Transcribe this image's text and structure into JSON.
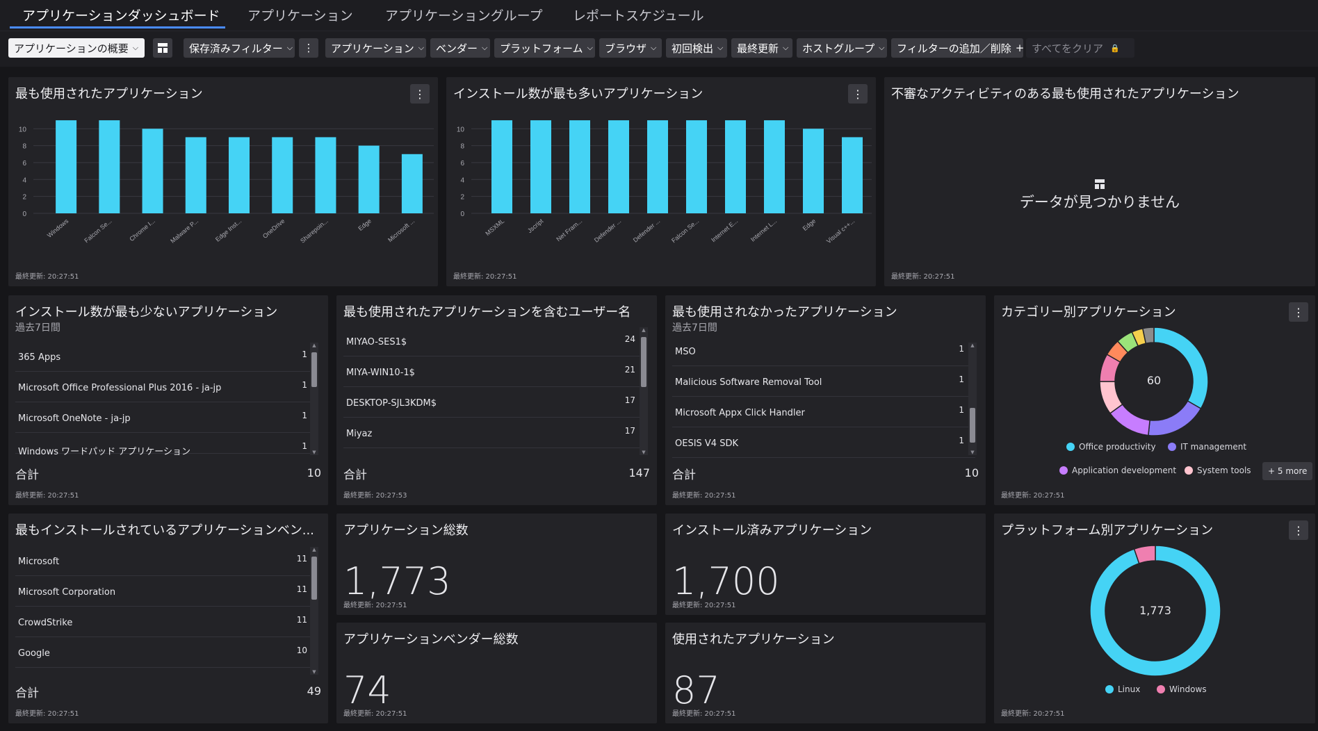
{
  "tabs": [
    {
      "label": "アプリケーションダッシュボード"
    },
    {
      "label": "アプリケーション"
    },
    {
      "label": "アプリケーショングループ"
    },
    {
      "label": "レポートスケジュール"
    }
  ],
  "toolbar": {
    "view_select": "アプリケーションの概要",
    "saved_filters": "保存済みフィルター",
    "filters": [
      "アプリケーション",
      "ベンダー",
      "プラットフォーム",
      "ブラウザ",
      "初回検出",
      "最終更新",
      "ホストグループ"
    ],
    "add_remove": "フィルターの追加／削除",
    "clear_all": "すべてをクリア"
  },
  "colors": {
    "accent": "#45d3f5",
    "tab_underline": "#4a8cff"
  },
  "cards": {
    "most_used": {
      "title": "最も使用されたアプリケーション",
      "footer": "最終更新: 20:27:51",
      "chart_data": {
        "type": "bar",
        "categories": [
          "Windows",
          "Falcon Se...",
          "Chrome I...",
          "Malware P...",
          "Edge Inst...",
          "OneDrive",
          "Sharepoin...",
          "Edge",
          "Microsoft ..."
        ],
        "values": [
          11,
          11,
          10,
          9,
          9,
          9,
          9,
          8,
          7
        ],
        "yticks": [
          0,
          2,
          4,
          6,
          8,
          10
        ],
        "ylim": [
          0,
          11.5
        ],
        "color": "#45d3f5"
      }
    },
    "most_installed": {
      "title": "インストール数が最も多いアプリケーション",
      "footer": "最終更新: 20:27:51",
      "chart_data": {
        "type": "bar",
        "categories": [
          "MSXML",
          "Jscript",
          "Net Fram...",
          "Defender ...",
          "Defender ...",
          "Falcon Se...",
          "Internet E...",
          "Internet L...",
          "Edge",
          "Visual c++..."
        ],
        "values": [
          11,
          11,
          11,
          11,
          11,
          11,
          11,
          11,
          10,
          9
        ],
        "yticks": [
          0,
          2,
          4,
          6,
          8,
          10
        ],
        "ylim": [
          0,
          11.5
        ],
        "color": "#45d3f5"
      }
    },
    "suspicious": {
      "title": "不審なアクティビティのある最も使用されたアプリケーション",
      "no_data": "データが見つかりません",
      "footer": "最終更新: 20:27:51"
    },
    "least_installed": {
      "title": "インストール数が最も少ないアプリケーション",
      "subtitle": "過去7日間",
      "rows": [
        {
          "name": "365 Apps",
          "count": "1"
        },
        {
          "name": "Microsoft Office Professional Plus 2016 - ja-jp",
          "count": "1"
        },
        {
          "name": "Microsoft OneNote - ja-jp",
          "count": "1"
        },
        {
          "name": "Windows ワードパッド アプリケーション",
          "count": "1"
        }
      ],
      "total_label": "合計",
      "total_value": "10",
      "footer": "最終更新: 20:27:51"
    },
    "usernames": {
      "title": "最も使用されたアプリケーションを含むユーザー名",
      "rows": [
        {
          "name": "MIYAO-SES1$",
          "count": "24"
        },
        {
          "name": "MIYA-WIN10-1$",
          "count": "21"
        },
        {
          "name": "DESKTOP-SJL3KDM$",
          "count": "17"
        },
        {
          "name": "Miyaz",
          "count": "17"
        }
      ],
      "total_label": "合計",
      "total_value": "147",
      "footer": "最終更新: 20:27:53"
    },
    "least_used": {
      "title": "最も使用されなかったアプリケーション",
      "subtitle": "過去7日間",
      "rows": [
        {
          "name": "MSO",
          "count": "1"
        },
        {
          "name": "Malicious Software Removal Tool",
          "count": "1"
        },
        {
          "name": "Microsoft Appx Click Handler",
          "count": "1"
        },
        {
          "name": "OESIS V4 SDK",
          "count": "1"
        }
      ],
      "total_label": "合計",
      "total_value": "10",
      "footer": "最終更新: 20:27:51"
    },
    "by_category": {
      "title": "カテゴリー別アプリケーション",
      "center": "60",
      "legend": [
        {
          "name": "Office productivity",
          "color": "#45d3f5"
        },
        {
          "name": "IT management",
          "color": "#8b7cf7"
        },
        {
          "name": "Application development",
          "color": "#c77dff"
        },
        {
          "name": "System tools",
          "color": "#ffc4cf"
        }
      ],
      "more": "+ 5 more",
      "chart_data": {
        "type": "pie",
        "values": [
          20,
          11,
          8,
          6,
          5,
          3,
          3,
          2,
          2
        ],
        "colors": [
          "#45d3f5",
          "#8b7cf7",
          "#c77dff",
          "#ffc4cf",
          "#ef7fb0",
          "#ff8a5c",
          "#9be37a",
          "#f5cf4d",
          "#8c8c8c"
        ]
      },
      "footer": "最終更新: 20:27:51"
    },
    "top_vendors": {
      "title": "最もインストールされているアプリケーションベン...",
      "rows": [
        {
          "name": "Microsoft",
          "count": "11"
        },
        {
          "name": "Microsoft Corporation",
          "count": "11"
        },
        {
          "name": "CrowdStrike",
          "count": "11"
        },
        {
          "name": "Google",
          "count": "10"
        }
      ],
      "total_label": "合計",
      "total_value": "49",
      "footer": "最終更新: 20:27:51"
    },
    "total_apps": {
      "title": "アプリケーション総数",
      "value": "1,773",
      "footer": "最終更新: 20:27:51"
    },
    "installed_apps": {
      "title": "インストール済みアプリケーション",
      "value": "1,700",
      "footer": "最終更新: 20:27:51"
    },
    "total_vendors": {
      "title": "アプリケーションベンダー総数",
      "value": "74",
      "footer": "最終更新: 20:27:51"
    },
    "used_apps": {
      "title": "使用されたアプリケーション",
      "value": "87",
      "footer": "最終更新: 20:27:51"
    },
    "by_platform": {
      "title": "プラットフォーム別アプリケーション",
      "center": "1,773",
      "legend": [
        {
          "name": "Linux",
          "color": "#45d3f5"
        },
        {
          "name": "Windows",
          "color": "#ef7fb0"
        }
      ],
      "chart_data": {
        "type": "pie",
        "values": [
          1680,
          93
        ],
        "colors": [
          "#45d3f5",
          "#ef7fb0"
        ]
      },
      "footer": "最終更新: 20:27:51"
    }
  }
}
